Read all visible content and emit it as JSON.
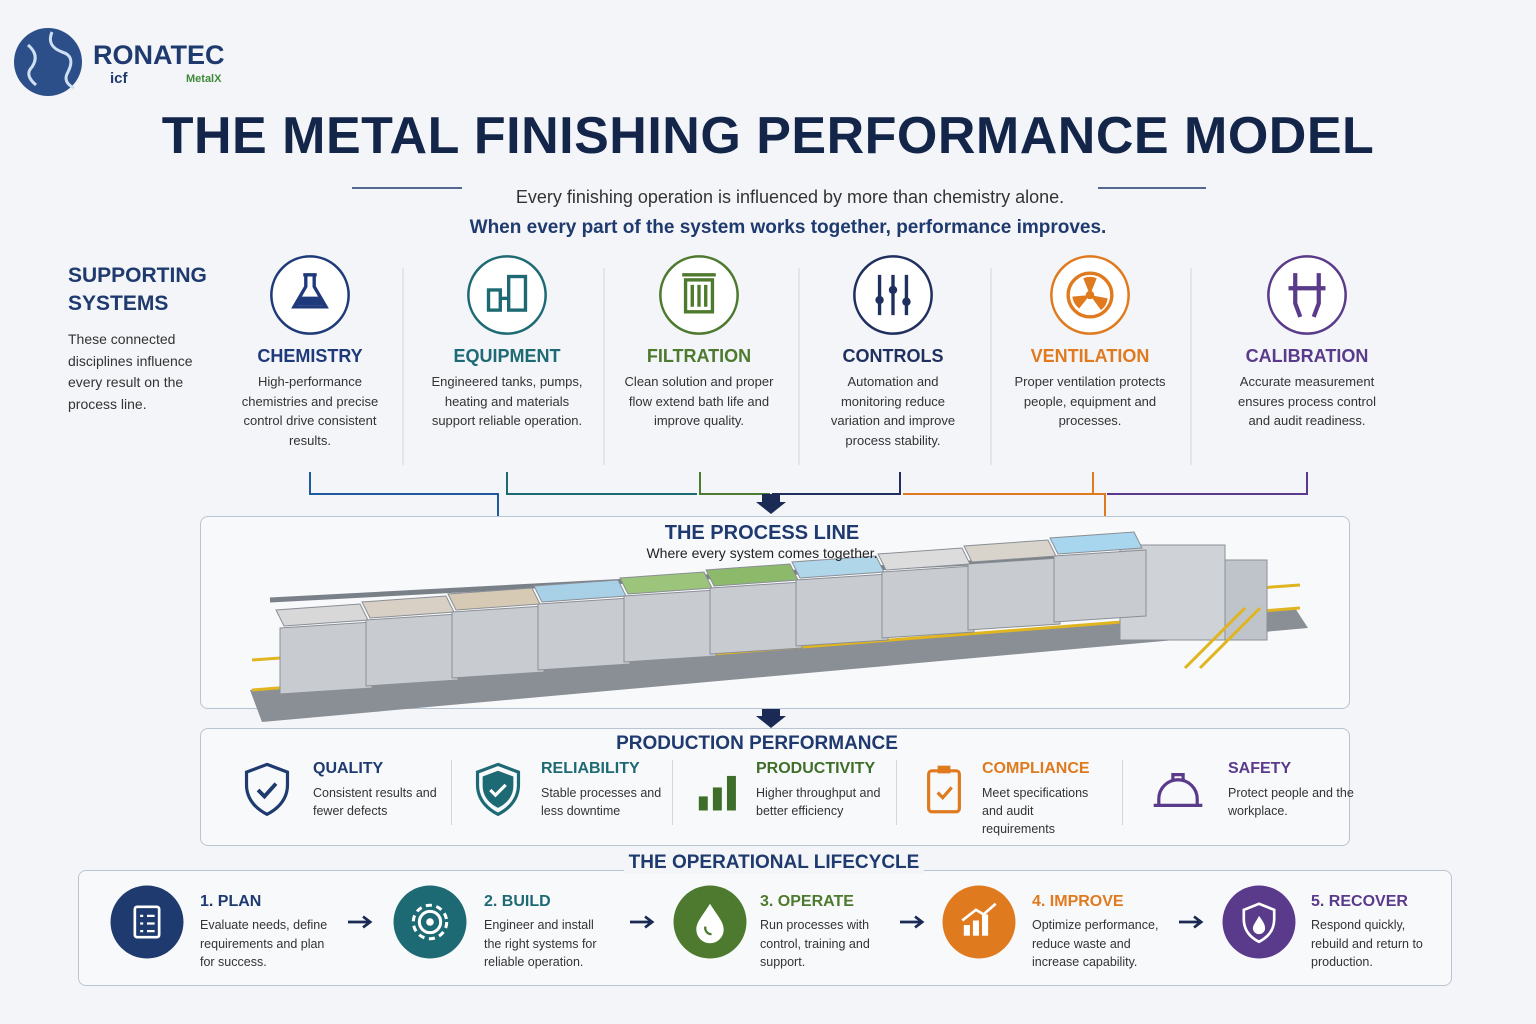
{
  "header": {
    "logo": {
      "brand": "RONATEC",
      "partners": [
        "icf",
        "MetalX"
      ]
    },
    "title": "THE METAL FINISHING PERFORMANCE MODEL",
    "intro": [
      "Every finishing operation is influenced by more than chemistry alone.",
      "When every part of the system works together, performance improves."
    ]
  },
  "supporting_systems": {
    "heading": "SUPPORTING SYSTEMS",
    "description": "These connected disciplines influence every result on the process line.",
    "items": [
      {
        "name": "CHEMISTRY",
        "description": "High-performance chemistries and precise control drive consistent results.",
        "color": "#1f3a7a"
      },
      {
        "name": "EQUIPMENT",
        "description": "Engineered tanks, pumps, heating and materials support reliable operation.",
        "color": "#1e6a74"
      },
      {
        "name": "FILTRATION",
        "description": "Clean solution and proper flow extend bath life and improve quality.",
        "color": "#4d7a2e"
      },
      {
        "name": "CONTROLS",
        "description": "Automation and monitoring reduce variation and improve process stability.",
        "color": "#1f2f5e"
      },
      {
        "name": "VENTILATION",
        "description": "Proper ventilation protects people, equipment and processes.",
        "color": "#e07a1f"
      },
      {
        "name": "CALIBRATION",
        "description": "Accurate measurement ensures process control and audit readiness.",
        "color": "#5a3a8a"
      }
    ]
  },
  "process_line": {
    "title": "THE PROCESS LINE",
    "subtitle": "Where every system comes together."
  },
  "production_performance": {
    "title": "PRODUCTION PERFORMANCE",
    "items": [
      {
        "name": "QUALITY",
        "description": "Consistent results and fewer defects",
        "color": "#1f3a6e"
      },
      {
        "name": "RELIABILITY",
        "description": "Stable processes and less downtime",
        "color": "#1e6a74"
      },
      {
        "name": "PRODUCTIVITY",
        "description": "Higher throughput and better efficiency",
        "color": "#3f6e2a"
      },
      {
        "name": "COMPLIANCE",
        "description": "Meet specifications and audit requirements",
        "color": "#e07a1f"
      },
      {
        "name": "SAFETY",
        "description": "Protect people and the workplace.",
        "color": "#5a3a8a"
      }
    ]
  },
  "lifecycle": {
    "title": "THE OPERATIONAL LIFECYCLE",
    "steps": [
      {
        "name": "1. PLAN",
        "description": "Evaluate needs, define requirements and plan for success.",
        "color": "#1f3a6e"
      },
      {
        "name": "2. BUILD",
        "description": "Engineer and install the right systems for reliable operation.",
        "color": "#1e6a74"
      },
      {
        "name": "3. OPERATE",
        "description": "Run processes with control, training and support.",
        "color": "#4d7a2e"
      },
      {
        "name": "4. IMPROVE",
        "description": "Optimize performance, reduce waste and increase capability.",
        "color": "#e07a1f"
      },
      {
        "name": "5. RECOVER",
        "description": "Respond quickly, rebuild and return to production.",
        "color": "#5a3a8a"
      }
    ]
  }
}
